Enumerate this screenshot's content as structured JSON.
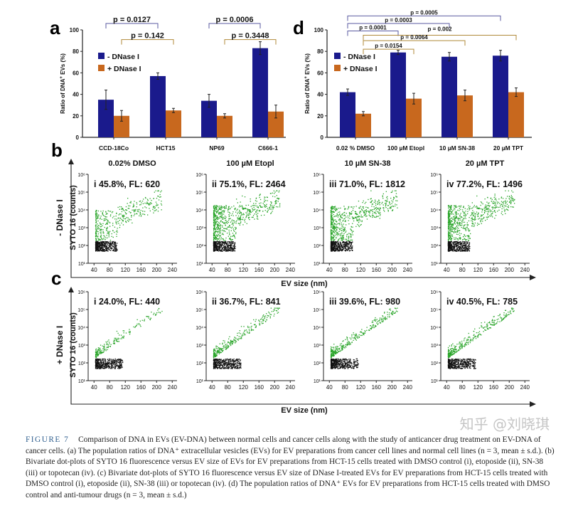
{
  "colors": {
    "minus": "#1a1a8c",
    "plus": "#c8681e",
    "green": "#2aa52a",
    "black": "#111111",
    "bracket_minus": "#5a5aa0",
    "bracket_plus": "#b08a3a"
  },
  "chart_data": [
    {
      "panel": "a",
      "type": "bar",
      "ylabel": [
        "Ratio of DNA",
        "+",
        " EVs (%)"
      ],
      "ylim": [
        0,
        100
      ],
      "yticks": [
        "0",
        "20",
        "40",
        "60",
        "80",
        "100"
      ],
      "categories": [
        "CCD-18Co",
        "HCT15",
        "NP69",
        "C666-1"
      ],
      "series": [
        {
          "name": "- DNase I",
          "values": [
            35,
            57,
            34,
            83
          ],
          "errors": [
            9,
            3,
            6,
            6
          ]
        },
        {
          "name": "+ DNase I",
          "values": [
            20,
            25,
            20,
            24
          ],
          "errors": [
            5,
            2,
            2,
            6
          ]
        }
      ],
      "legend": "top-left",
      "comparisons": [
        {
          "label": "p = 0.0127",
          "series": 0,
          "from": 0,
          "to": 1,
          "level": 106
        },
        {
          "label": "p = 0.142",
          "series": 1,
          "from": 0,
          "to": 1,
          "level": 91
        },
        {
          "label": "p = 0.0006",
          "series": 0,
          "from": 2,
          "to": 3,
          "level": 106
        },
        {
          "label": "p = 0.3448",
          "series": 1,
          "from": 2,
          "to": 3,
          "level": 91
        }
      ]
    },
    {
      "panel": "d",
      "type": "bar",
      "ylabel": [
        "Ratio of DNA",
        "+",
        " EVs (%)"
      ],
      "ylim": [
        0,
        100
      ],
      "yticks": [
        "0",
        "20",
        "40",
        "60",
        "80",
        "100"
      ],
      "categories": [
        "0.02 % DMSO",
        "100 µM Etopl",
        "10 µM SN-38",
        "20 µM TPT"
      ],
      "series": [
        {
          "name": "- DNase I",
          "values": [
            42,
            79,
            75,
            76
          ],
          "errors": [
            3,
            2,
            4,
            5
          ]
        },
        {
          "name": "+ DNase I",
          "values": [
            22,
            36,
            39,
            42
          ],
          "errors": [
            2,
            5,
            5,
            4
          ]
        }
      ],
      "legend": "top-left",
      "comparisons": [
        {
          "label": "p = 0.0005",
          "series": 0,
          "from": 0,
          "to": 3,
          "level": 113
        },
        {
          "label": "p = 0.0003",
          "series": 0,
          "from": 0,
          "to": 2,
          "level": 106
        },
        {
          "label": "p = 0.0001",
          "series": 0,
          "from": 0,
          "to": 1,
          "level": 99
        },
        {
          "label": "p = 0.002",
          "series": 1,
          "from": 0,
          "to": 3,
          "level": 95
        },
        {
          "label": "p = 0.0064",
          "series": 1,
          "from": 0,
          "to": 2,
          "level": 90
        },
        {
          "label": "p = 0.0154",
          "series": 1,
          "from": 0,
          "to": 1,
          "level": 82
        }
      ]
    },
    {
      "panel": "b",
      "type": "scatter",
      "row_label": "- DNase I",
      "ylabel": "SYTO 16 (counts)",
      "xlabel": "EV size (nm)",
      "xticks": [
        "40",
        "80",
        "120",
        "160",
        "200",
        "240"
      ],
      "yticks": [
        "10¹",
        "10²",
        "10³",
        "10⁴",
        "10⁵",
        "10⁶"
      ],
      "xlim": [
        25,
        245
      ],
      "ylim_log10": [
        1,
        6
      ],
      "column_titles": [
        "0.02% DMSO",
        "100 µM Etopl",
        "10 µM SN-38",
        "20 µM TPT"
      ],
      "panels": [
        {
          "label": "i  45.8%, FL: 620",
          "percent": 45.8,
          "fl": 620
        },
        {
          "label": "ii  75.1%, FL: 2464",
          "percent": 75.1,
          "fl": 2464
        },
        {
          "label": "iii  71.0%, FL: 1812",
          "percent": 71.0,
          "fl": 1812
        },
        {
          "label": "iv  77.2%, FL: 1496",
          "percent": 77.2,
          "fl": 1496
        }
      ]
    },
    {
      "panel": "c",
      "type": "scatter",
      "row_label": "+ DNase I",
      "ylabel": "SYTO 16 (counts)",
      "xlabel": "EV size (nm)",
      "xticks": [
        "40",
        "80",
        "120",
        "160",
        "200",
        "240"
      ],
      "yticks": [
        "10¹",
        "10²",
        "10³",
        "10⁴",
        "10⁵",
        "10⁶"
      ],
      "xlim": [
        25,
        245
      ],
      "ylim_log10": [
        1,
        6
      ],
      "panels": [
        {
          "label": "i  24.0%, FL: 440",
          "percent": 24.0,
          "fl": 440
        },
        {
          "label": "ii  36.7%, FL: 841",
          "percent": 36.7,
          "fl": 841
        },
        {
          "label": "iii  39.6%, FL: 980",
          "percent": 39.6,
          "fl": 980
        },
        {
          "label": "iv  40.5%, FL: 785",
          "percent": 40.5,
          "fl": 785
        }
      ]
    }
  ],
  "caption": {
    "label": "FIGURE 7",
    "text": "Comparison of DNA in EVs (EV-DNA) between normal cells and cancer cells along with the study of anticancer drug treatment on EV-DNA of cancer cells. (a) The population ratios of DNA⁺ extracellular vesicles (EVs) for EV preparations from cancer cell lines and normal cell lines (n = 3, mean ± s.d.). (b) Bivariate dot-plots of SYTO 16 fluorescence versus EV size of EVs for EV preparations from HCT-15 cells treated with DMSO control (i), etoposide (ii), SN-38 (iii) or topotecan (iv). (c) Bivariate dot-plots of SYTO 16 fluorescence versus EV size of DNase I-treated EVs for EV preparations from HCT-15 cells treated with DMSO control (i), etoposide (ii), SN-38 (iii) or topotecan (iv). (d) The population ratios of DNA⁺ EVs for EV preparations from HCT-15 cells treated with DMSO control and anti-tumour drugs (n = 3, mean ± s.d.)"
  },
  "watermark": "知乎 @刘晓琪"
}
